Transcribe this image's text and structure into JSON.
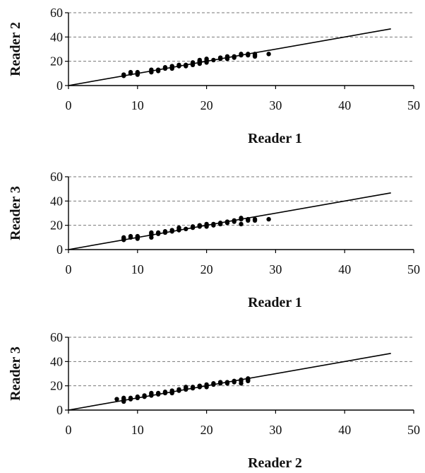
{
  "chart_data": [
    {
      "type": "scatter",
      "xlabel": "Reader 1",
      "ylabel": "Reader 2",
      "xlim": [
        0,
        50
      ],
      "ylim": [
        0,
        60
      ],
      "xticks": [
        0,
        10,
        20,
        30,
        40,
        50
      ],
      "yticks": [
        0,
        20,
        40,
        60
      ],
      "grid": "horizontal dashed",
      "identity_line": {
        "x": [
          0,
          46.7
        ],
        "y": [
          0,
          46.7
        ]
      },
      "series": [
        {
          "points": [
            [
              8,
              8
            ],
            [
              8,
              9
            ],
            [
              9,
              10
            ],
            [
              9,
              11
            ],
            [
              10,
              9
            ],
            [
              10,
              10
            ],
            [
              10,
              11
            ],
            [
              12,
              11
            ],
            [
              12,
              12
            ],
            [
              12,
              13
            ],
            [
              13,
              12
            ],
            [
              13,
              13
            ],
            [
              14,
              14
            ],
            [
              14,
              15
            ],
            [
              15,
              14
            ],
            [
              15,
              15
            ],
            [
              15,
              16
            ],
            [
              16,
              16
            ],
            [
              16,
              17
            ],
            [
              17,
              16
            ],
            [
              17,
              17
            ],
            [
              18,
              17
            ],
            [
              18,
              18
            ],
            [
              18,
              19
            ],
            [
              19,
              18
            ],
            [
              19,
              19
            ],
            [
              19,
              20
            ],
            [
              19,
              21
            ],
            [
              20,
              19
            ],
            [
              20,
              20
            ],
            [
              20,
              21
            ],
            [
              20,
              22
            ],
            [
              21,
              21
            ],
            [
              22,
              22
            ],
            [
              22,
              23
            ],
            [
              23,
              22
            ],
            [
              23,
              23
            ],
            [
              23,
              24
            ],
            [
              24,
              23
            ],
            [
              24,
              24
            ],
            [
              25,
              25
            ],
            [
              25,
              26
            ],
            [
              26,
              25
            ],
            [
              26,
              26
            ],
            [
              27,
              24
            ],
            [
              27,
              25
            ],
            [
              27,
              26
            ],
            [
              29,
              26
            ]
          ]
        }
      ]
    },
    {
      "type": "scatter",
      "xlabel": "Reader 1",
      "ylabel": "Reader 3",
      "xlim": [
        0,
        50
      ],
      "ylim": [
        0,
        60
      ],
      "xticks": [
        0,
        10,
        20,
        30,
        40,
        50
      ],
      "yticks": [
        0,
        20,
        40,
        60
      ],
      "grid": "horizontal dashed",
      "identity_line": {
        "x": [
          0,
          46.7
        ],
        "y": [
          0,
          46.7
        ]
      },
      "series": [
        {
          "points": [
            [
              8,
              8
            ],
            [
              8,
              9
            ],
            [
              8,
              10
            ],
            [
              9,
              10
            ],
            [
              9,
              11
            ],
            [
              10,
              9
            ],
            [
              10,
              10
            ],
            [
              10,
              11
            ],
            [
              12,
              10
            ],
            [
              12,
              12
            ],
            [
              12,
              13
            ],
            [
              12,
              14
            ],
            [
              13,
              13
            ],
            [
              13,
              14
            ],
            [
              14,
              14
            ],
            [
              14,
              15
            ],
            [
              15,
              15
            ],
            [
              15,
              16
            ],
            [
              16,
              16
            ],
            [
              16,
              17
            ],
            [
              16,
              18
            ],
            [
              17,
              17
            ],
            [
              18,
              18
            ],
            [
              18,
              19
            ],
            [
              19,
              19
            ],
            [
              19,
              20
            ],
            [
              20,
              19
            ],
            [
              20,
              20
            ],
            [
              20,
              21
            ],
            [
              21,
              20
            ],
            [
              21,
              21
            ],
            [
              22,
              21
            ],
            [
              22,
              22
            ],
            [
              23,
              22
            ],
            [
              23,
              23
            ],
            [
              24,
              23
            ],
            [
              24,
              24
            ],
            [
              25,
              21
            ],
            [
              25,
              25
            ],
            [
              25,
              26
            ],
            [
              26,
              24
            ],
            [
              26,
              25
            ],
            [
              27,
              24
            ],
            [
              27,
              25
            ],
            [
              29,
              25
            ]
          ]
        }
      ]
    },
    {
      "type": "scatter",
      "xlabel": "Reader 2",
      "ylabel": "Reader 3",
      "xlim": [
        0,
        50
      ],
      "ylim": [
        0,
        60
      ],
      "xticks": [
        0,
        10,
        20,
        30,
        40,
        50
      ],
      "yticks": [
        0,
        20,
        40,
        60
      ],
      "grid": "horizontal dashed",
      "identity_line": {
        "x": [
          0,
          46.7
        ],
        "y": [
          0,
          46.7
        ]
      },
      "series": [
        {
          "points": [
            [
              7,
              9
            ],
            [
              8,
              7
            ],
            [
              8,
              8
            ],
            [
              8,
              9
            ],
            [
              8,
              10
            ],
            [
              9,
              9
            ],
            [
              9,
              10
            ],
            [
              10,
              10
            ],
            [
              10,
              11
            ],
            [
              11,
              11
            ],
            [
              11,
              12
            ],
            [
              12,
              12
            ],
            [
              12,
              13
            ],
            [
              12,
              14
            ],
            [
              13,
              13
            ],
            [
              13,
              14
            ],
            [
              14,
              14
            ],
            [
              14,
              15
            ],
            [
              15,
              14
            ],
            [
              15,
              15
            ],
            [
              15,
              16
            ],
            [
              16,
              16
            ],
            [
              16,
              17
            ],
            [
              17,
              17
            ],
            [
              17,
              18
            ],
            [
              17,
              19
            ],
            [
              18,
              18
            ],
            [
              18,
              19
            ],
            [
              19,
              19
            ],
            [
              19,
              20
            ],
            [
              20,
              19
            ],
            [
              20,
              20
            ],
            [
              20,
              21
            ],
            [
              21,
              21
            ],
            [
              21,
              22
            ],
            [
              22,
              22
            ],
            [
              22,
              23
            ],
            [
              23,
              22
            ],
            [
              23,
              23
            ],
            [
              24,
              23
            ],
            [
              24,
              24
            ],
            [
              25,
              22
            ],
            [
              25,
              24
            ],
            [
              25,
              25
            ],
            [
              26,
              24
            ],
            [
              26,
              25
            ],
            [
              26,
              26
            ]
          ]
        }
      ]
    }
  ]
}
